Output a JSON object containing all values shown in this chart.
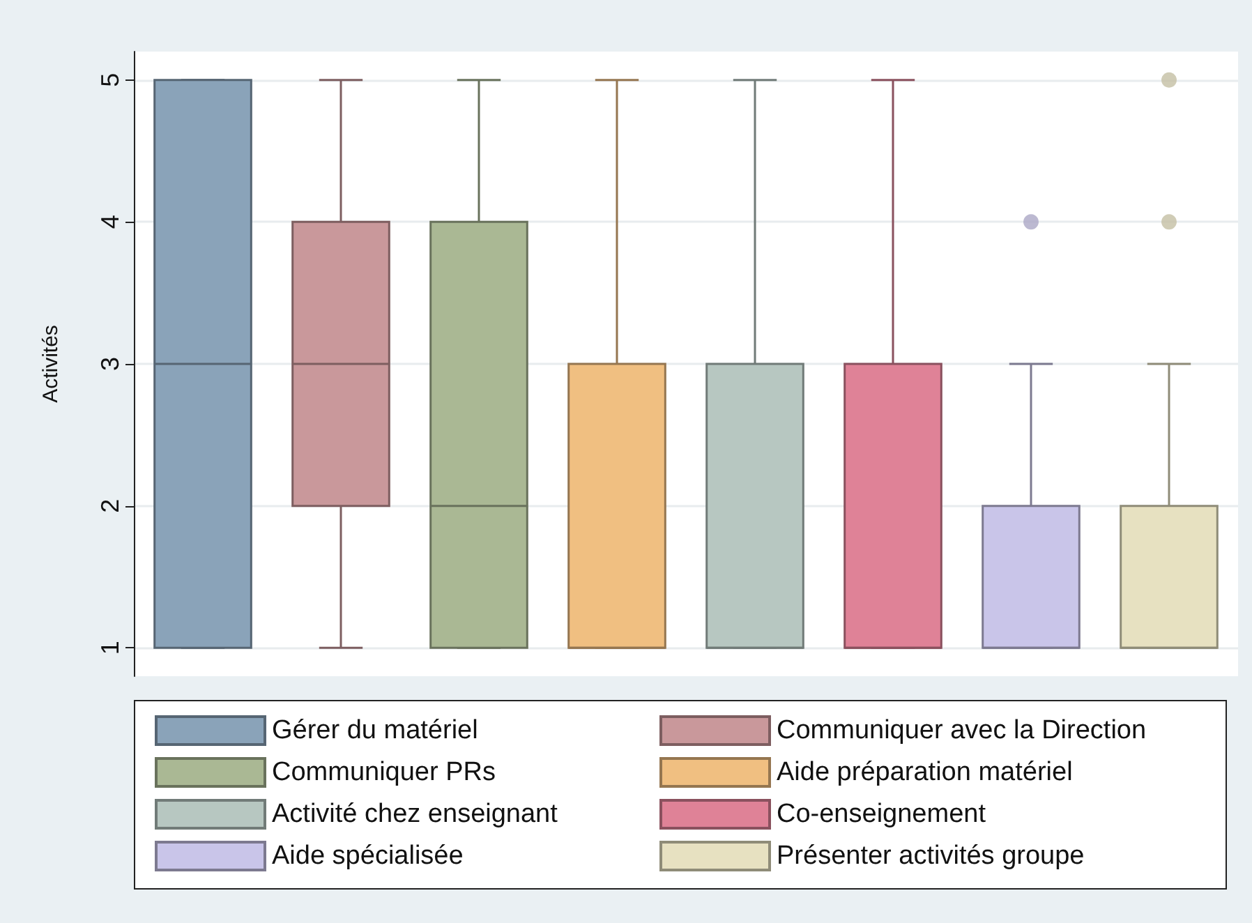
{
  "chart_data": {
    "type": "box",
    "ylabel": "Activités",
    "categories": [
      null,
      null,
      null,
      null,
      null,
      null,
      null,
      null
    ],
    "ylim": [
      0.8,
      5.2
    ],
    "yticks": [
      1,
      2,
      3,
      4,
      5
    ],
    "grid": "y",
    "legend": "bottom",
    "series": [
      {
        "name": "Gérer du matériel",
        "color": "#8aa3b9",
        "boxes": [
          {
            "low": 1,
            "q1": 1,
            "median": 3,
            "q3": 5,
            "high": 5
          },
          null,
          null,
          null,
          null,
          null,
          null,
          null
        ]
      },
      {
        "name": "Communiquer avec la Direction",
        "color": "#c9989b",
        "boxes": [
          null,
          {
            "low": 1,
            "q1": 2,
            "median": 3,
            "q3": 4,
            "high": 5
          },
          null,
          null,
          null,
          null,
          null,
          null
        ]
      },
      {
        "name": "Communiquer PRs",
        "color": "#aab894",
        "boxes": [
          null,
          null,
          {
            "low": 1,
            "q1": 1,
            "median": 2,
            "q3": 4,
            "high": 5
          },
          null,
          null,
          null,
          null,
          null
        ]
      },
      {
        "name": "Aide préparation matériel",
        "color": "#f0bf81",
        "boxes": [
          null,
          null,
          null,
          {
            "low": 1,
            "q1": 1,
            "median": 1,
            "q3": 3,
            "high": 5
          },
          null,
          null,
          null,
          null
        ]
      },
      {
        "name": "Activité chez enseignant",
        "color": "#b7c7c1",
        "boxes": [
          null,
          null,
          null,
          null,
          {
            "low": 1,
            "q1": 1,
            "median": 1,
            "q3": 3,
            "high": 5
          },
          null,
          null,
          null
        ]
      },
      {
        "name": "Co-enseignement",
        "color": "#df8297",
        "boxes": [
          null,
          null,
          null,
          null,
          null,
          {
            "low": 1,
            "q1": 1,
            "median": 1,
            "q3": 3,
            "high": 5
          },
          null,
          null
        ]
      },
      {
        "name": "Aide spécialisée",
        "color": "#c9c5e9",
        "boxes": [
          null,
          null,
          null,
          null,
          null,
          null,
          {
            "low": 1,
            "q1": 1,
            "median": 1,
            "q3": 2,
            "high": 3,
            "outliers": [
              4
            ]
          },
          null
        ]
      },
      {
        "name": "Présenter activités groupe",
        "color": "#e7e1c1",
        "boxes": [
          null,
          null,
          null,
          null,
          null,
          null,
          null,
          {
            "low": 1,
            "q1": 1,
            "median": 1,
            "q3": 2,
            "high": 3,
            "outliers": [
              4,
              5
            ]
          }
        ]
      }
    ]
  }
}
